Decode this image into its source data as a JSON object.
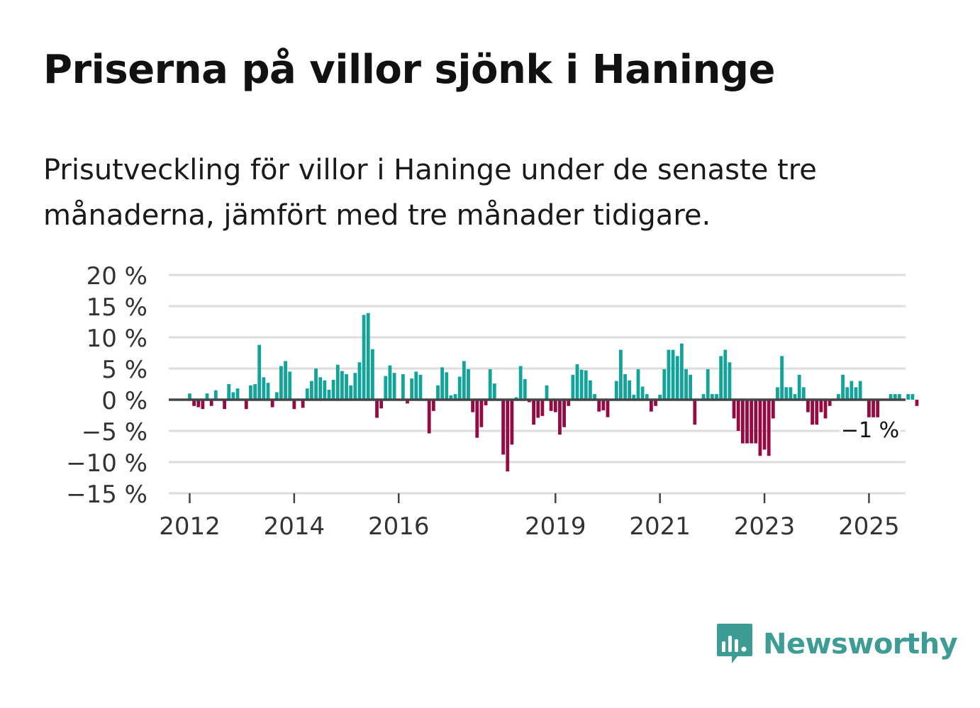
{
  "title": "Priserna på villor sjönk i Haninge",
  "subtitle": "Prisutveckling för villor i Haninge under de senaste tre månaderna, jämfört med tre månader tidigare.",
  "brand": {
    "name": "Newsworthy",
    "color": "#3d9c94",
    "icon": "bar-chart-speech-bubble-icon"
  },
  "colors": {
    "positive": "#12a39a",
    "negative": "#960a44",
    "grid": "#dddddd",
    "zero_line": "#444444",
    "text": "#333333"
  },
  "chart_data": {
    "type": "bar",
    "title": "Priserna på villor sjönk i Haninge",
    "ylabel": "",
    "xlabel": "",
    "ylim": [
      -15,
      20
    ],
    "y_ticks": [
      {
        "value": 20,
        "label": "20 %"
      },
      {
        "value": 15,
        "label": "15 %"
      },
      {
        "value": 10,
        "label": "10 %"
      },
      {
        "value": 5,
        "label": "5 %"
      },
      {
        "value": 0,
        "label": "0 %"
      },
      {
        "value": -5,
        "label": "−5 %"
      },
      {
        "value": -10,
        "label": "−10 %"
      },
      {
        "value": -15,
        "label": "−15 %"
      }
    ],
    "x_start": 2011.6,
    "x_end": 2025.7,
    "x_ticks": [
      {
        "value": 2012,
        "label": "2012"
      },
      {
        "value": 2014,
        "label": "2014"
      },
      {
        "value": 2016,
        "label": "2016"
      },
      {
        "value": 2019,
        "label": "2019"
      },
      {
        "value": 2021,
        "label": "2021"
      },
      {
        "value": 2023,
        "label": "2023"
      },
      {
        "value": 2025,
        "label": "2025"
      }
    ],
    "start": {
      "year": 2012,
      "month": 1
    },
    "interval": "monthly",
    "values": [
      1,
      -1,
      -1.2,
      -1.5,
      1,
      -1,
      1.5,
      0,
      -1.5,
      2.5,
      1.2,
      1.8,
      0,
      -1.5,
      2.3,
      2.5,
      8.8,
      3.6,
      2.7,
      -1.2,
      1.2,
      5.4,
      6.2,
      4.5,
      -1.5,
      0,
      -1.3,
      1.8,
      3,
      5,
      3.6,
      3.1,
      1.6,
      3.2,
      5.6,
      4.6,
      4.1,
      2.3,
      4.3,
      6,
      13.6,
      13.9,
      8.1,
      -2.9,
      -1.4,
      3.8,
      5.5,
      4.3,
      0,
      4.1,
      -0.6,
      3.4,
      4.5,
      4,
      0,
      -5.4,
      -1.8,
      2.3,
      5.2,
      4.4,
      0.7,
      0.9,
      3.7,
      6.2,
      4.9,
      -2,
      -6.1,
      -4.4,
      -0.9,
      4.9,
      2.6,
      0,
      -8.8,
      -11.5,
      -7.2,
      0.4,
      5.4,
      3.3,
      -0.4,
      -4,
      -2.9,
      -2.6,
      2.3,
      -1.8,
      -2,
      -5.6,
      -4.4,
      -1,
      4,
      5.7,
      4.8,
      4.7,
      3.1,
      0.9,
      -1.9,
      -1.7,
      -2.8,
      0,
      3,
      8,
      4.1,
      3.1,
      0.8,
      4.9,
      2.1,
      0.9,
      -1.9,
      -1,
      0.8,
      4.9,
      8,
      8,
      7,
      9,
      4.9,
      4,
      -4,
      0,
      0.9,
      4.9,
      0.9,
      0.9,
      7,
      8,
      6,
      -3,
      -5,
      -7,
      -7,
      -7,
      -7,
      -9,
      -8,
      -9,
      -3,
      2,
      7,
      2,
      2,
      0.9,
      4,
      2,
      -2,
      -4,
      -4,
      -2,
      -3,
      -1,
      0,
      0.9,
      4,
      2,
      3,
      2,
      3,
      0,
      -4,
      -4,
      -3,
      0,
      0,
      0.9,
      0.9,
      0.9,
      0,
      0.9,
      0.9,
      -1
    ],
    "last_label": "−1 %"
  }
}
